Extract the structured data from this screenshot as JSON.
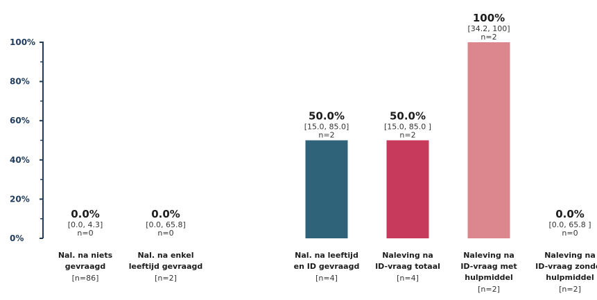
{
  "chart_data": {
    "type": "bar",
    "ylim": [
      0,
      100
    ],
    "yticks": [
      "0%",
      "20%",
      "40%",
      "60%",
      "80%",
      "100%"
    ],
    "bars": [
      {
        "label_lines": [
          "Nal. na niets",
          "gevraagd"
        ],
        "n_label": "[n=86]",
        "value": 0.0,
        "value_label": "0.0%",
        "ci_label": "[0.0, 4.3]",
        "n_small": "n=0",
        "color": "#ffffff"
      },
      {
        "label_lines": [
          "Nal. na enkel",
          "leeftijd gevraagd"
        ],
        "n_label": "[n=2]",
        "value": 0.0,
        "value_label": "0.0%",
        "ci_label": "[0.0, 65.8]",
        "n_small": "n=0",
        "color": "#ffffff"
      },
      {
        "label_lines": [
          "Nal. na leeftijd",
          "en ID gevraagd"
        ],
        "n_label": "[n=4]",
        "value": 50.0,
        "value_label": "50.0%",
        "ci_label": "[15.0, 85.0]",
        "n_small": "n=2",
        "color": "#2f6379"
      },
      {
        "label_lines": [
          "Naleving na",
          "ID-vraag totaal"
        ],
        "n_label": "[n=4]",
        "value": 50.0,
        "value_label": "50.0%",
        "ci_label": "[15.0, 85.0 ]",
        "n_small": "n=2",
        "color": "#c73a5b"
      },
      {
        "label_lines": [
          "Naleving na",
          "ID-vraag met",
          "hulpmiddel"
        ],
        "n_label": "[n=2]",
        "value": 100,
        "value_label": "100%",
        "ci_label": "[34.2, 100]",
        "n_small": "n=2",
        "color": "#db878d"
      },
      {
        "label_lines": [
          "Naleving na",
          "ID-vraag zonder",
          "hulpmiddel"
        ],
        "n_label": "[n=2]",
        "value": 0.0,
        "value_label": "0.0%",
        "ci_label": "[0.0, 65.8 ]",
        "n_small": "n=0",
        "color": "#ffffff"
      }
    ]
  }
}
